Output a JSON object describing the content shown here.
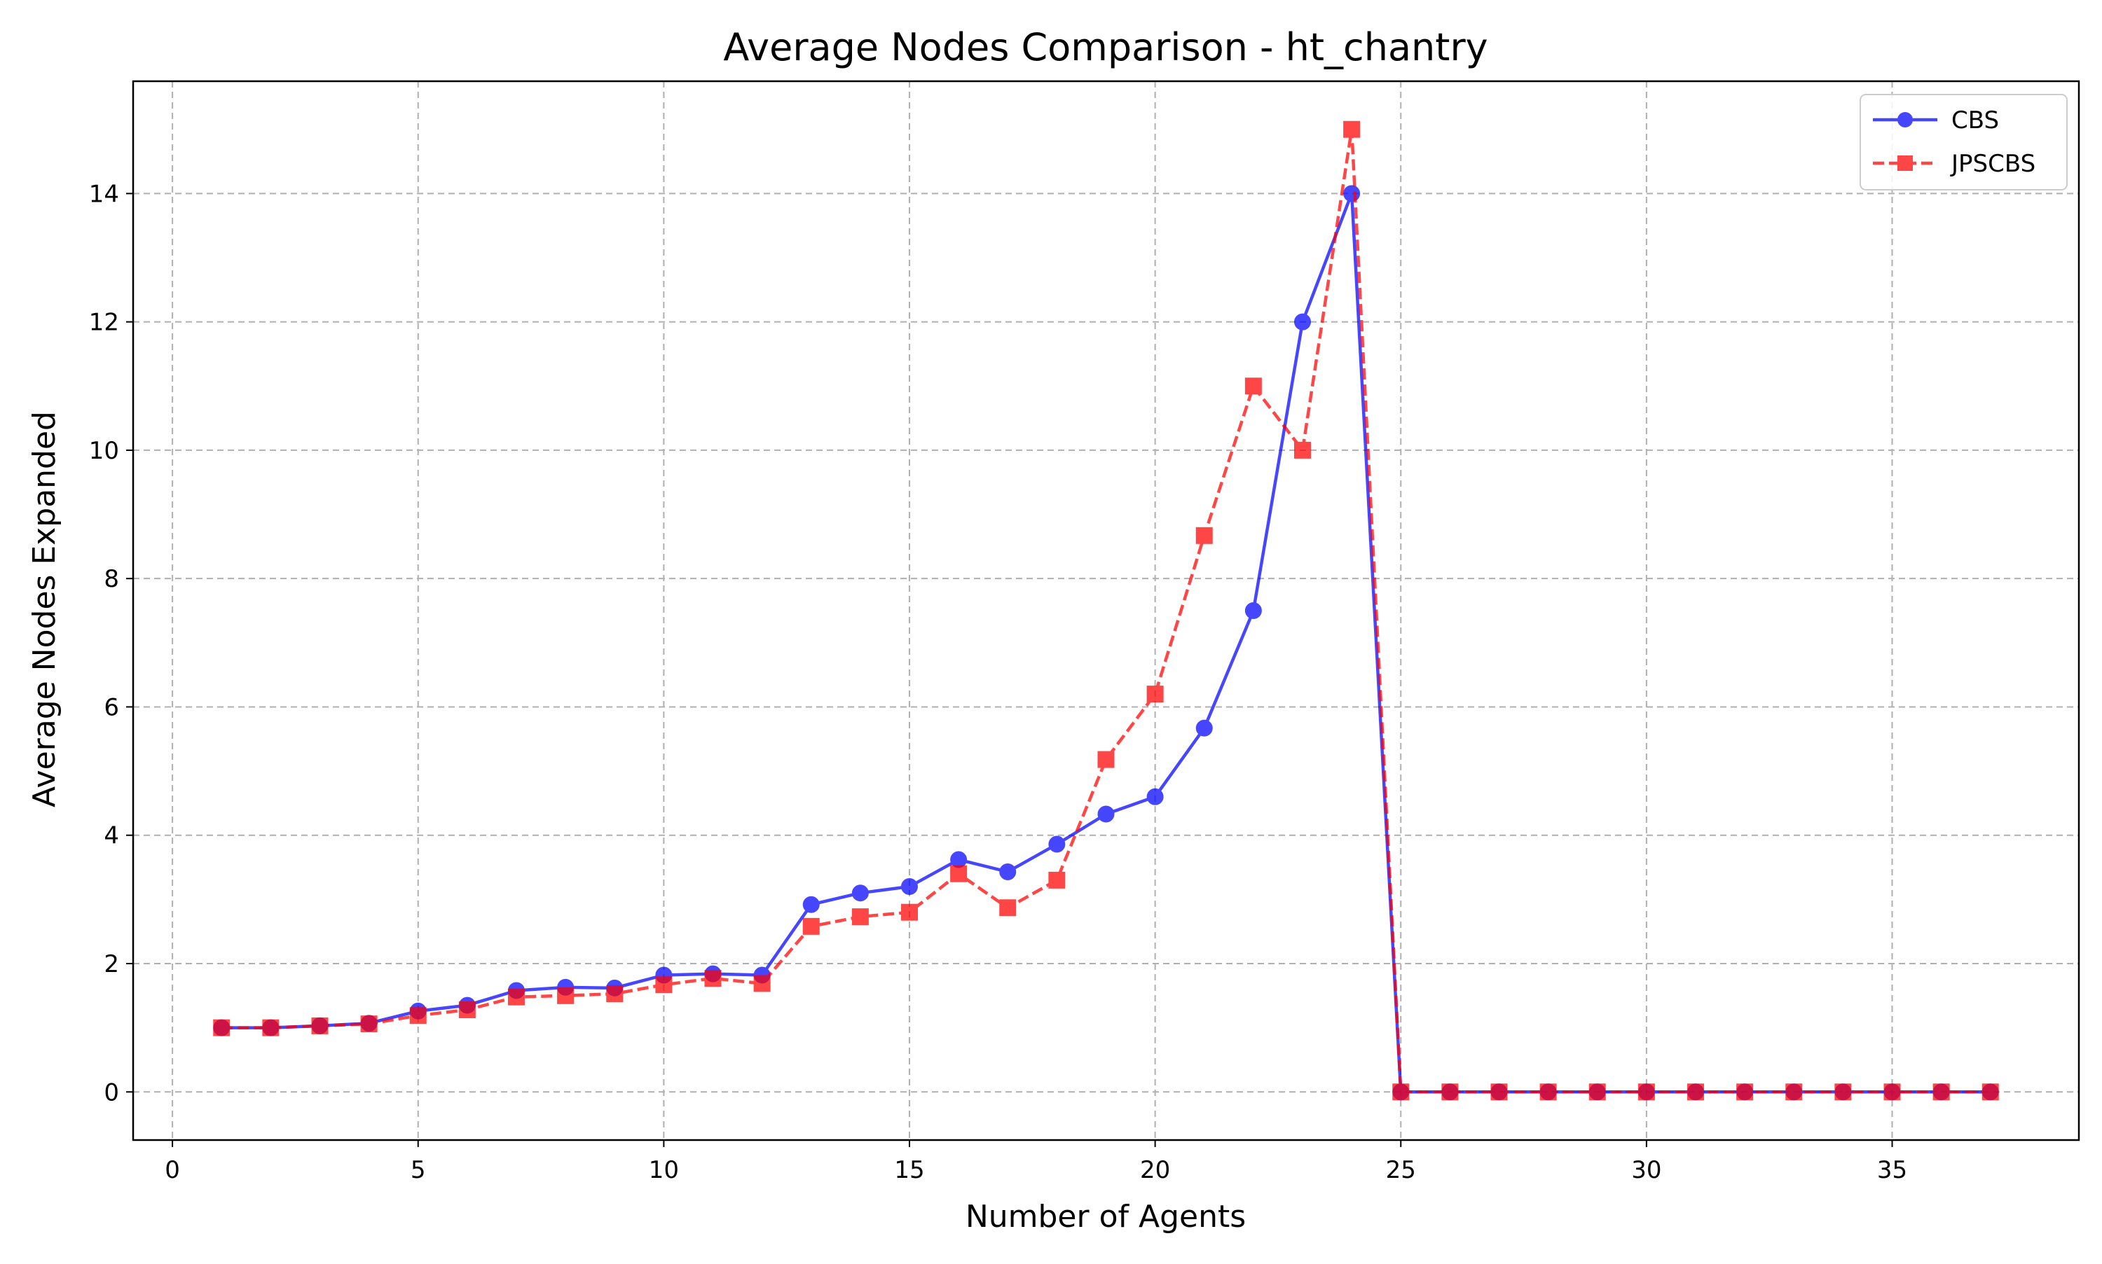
{
  "chart_data": {
    "type": "line",
    "title": "Average Nodes Comparison - ht_chantry",
    "xlabel": "Number of Agents",
    "ylabel": "Average Nodes Expanded",
    "xlim": [
      -0.8,
      38.8
    ],
    "ylim": [
      -0.75,
      15.75
    ],
    "xticks": [
      0,
      5,
      10,
      15,
      20,
      25,
      30,
      35
    ],
    "yticks": [
      0,
      2,
      4,
      6,
      8,
      10,
      12,
      14
    ],
    "grid": true,
    "legend_position": "top-right",
    "x": [
      1,
      2,
      3,
      4,
      5,
      6,
      7,
      8,
      9,
      10,
      11,
      12,
      13,
      14,
      15,
      16,
      17,
      18,
      19,
      20,
      21,
      22,
      23,
      24,
      25,
      26,
      27,
      28,
      29,
      30,
      31,
      32,
      33,
      34,
      35,
      36,
      37
    ],
    "series": [
      {
        "name": "CBS",
        "color": "#0000ff",
        "line_style": "solid",
        "marker": "circle",
        "values": [
          1.0,
          1.0,
          1.03,
          1.07,
          1.26,
          1.35,
          1.58,
          1.63,
          1.62,
          1.82,
          1.84,
          1.82,
          2.92,
          3.1,
          3.2,
          3.62,
          3.43,
          3.86,
          4.33,
          4.6,
          5.67,
          7.5,
          12.0,
          14.0,
          0,
          0,
          0,
          0,
          0,
          0,
          0,
          0,
          0,
          0,
          0,
          0,
          0
        ]
      },
      {
        "name": "JPSCBS",
        "color": "#ff0000",
        "line_style": "dashed",
        "marker": "square",
        "values": [
          1.0,
          1.0,
          1.03,
          1.06,
          1.19,
          1.28,
          1.48,
          1.5,
          1.53,
          1.67,
          1.77,
          1.69,
          2.58,
          2.73,
          2.8,
          3.4,
          2.87,
          3.3,
          5.18,
          6.2,
          8.67,
          11.0,
          10.0,
          15.0,
          0,
          0,
          0,
          0,
          0,
          0,
          0,
          0,
          0,
          0,
          0,
          0,
          0
        ]
      }
    ]
  }
}
